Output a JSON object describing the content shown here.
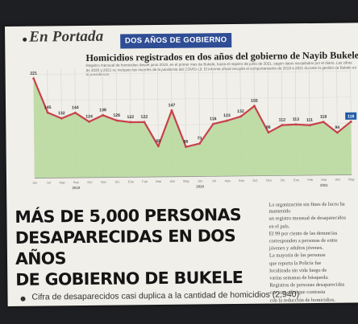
{
  "section": {
    "name": "En Portada",
    "banner": "DOS AÑOS DE GOBIERNO"
  },
  "chart_title": "Homicidios registrados en dos años del gobierno de Nayib Bukele",
  "chart_note": "Registro mensual de homicidios desde junio 2019, en el primer mes de Bukele, hasta el registro de junio de 2021, según datos recopilados por el diario. Las cifras de 2020 y 2021 no incluyen las muertes de la pandemia del COVID-19. El informe oficial recopila el comportamiento de 2019 a 2021 durante la gestión de Bukele en la presidencia.",
  "chart_data": {
    "type": "area",
    "title": "Homicidios registrados en dos años del gobierno de Nayib Bukele",
    "values": [
      221,
      145,
      132,
      144,
      124,
      138,
      126,
      122,
      122,
      68,
      147,
      66,
      73,
      116,
      123,
      132,
      155,
      96,
      112,
      113,
      111,
      118,
      94,
      118
    ],
    "labels": [
      "221",
      "145",
      "132",
      "144",
      "124",
      "138",
      "126",
      "122",
      "122",
      "68",
      "147",
      "66",
      "73",
      "116",
      "123",
      "132",
      "155",
      "96",
      "112",
      "113",
      "111",
      "118",
      "94",
      "118"
    ],
    "months": [
      "Jun",
      "Jul",
      "Ago",
      "Sep",
      "Oct",
      "Nov",
      "Dic",
      "Ene",
      "Feb",
      "Mar",
      "Abr",
      "May",
      "Jun",
      "Jul",
      "Ago",
      "Sep",
      "Oct",
      "Nov",
      "Dic",
      "Ene",
      "Feb",
      "Mar",
      "Abr",
      "May"
    ],
    "years": [
      "2019",
      "2020",
      "2021"
    ],
    "ylim": [
      0,
      230
    ],
    "grid": true,
    "colors": {
      "fill": "#b9d9a0",
      "line": "#c8414a",
      "marker": "#1e5ba8"
    }
  },
  "headline": {
    "line1": "MÁS DE 5,000 PERSONAS",
    "line2": "DESAPARECIDAS EN DOS AÑOS",
    "line3": "DE GOBIERNO DE BUKELE"
  },
  "subheadline": "Cifra de desaparecidos casi duplica a la cantidad de homicidios (2,940)",
  "side_column": [
    "La organización sin fines de lucro ha mantenido",
    "un registro mensual de desaparecidos",
    "en el país.",
    "El 99 por ciento de las denuncias",
    "corresponden a personas de entre",
    "jóvenes y adultos jóvenes.",
    "La mayoría de las personas",
    "que reporta la Policía fue",
    "localizada sin vida luego de",
    "varias semanas de búsqueda.",
    "Registros de personas desaparecidas",
    "con una cifra que contrasta",
    "con la reducción de homicidios."
  ]
}
